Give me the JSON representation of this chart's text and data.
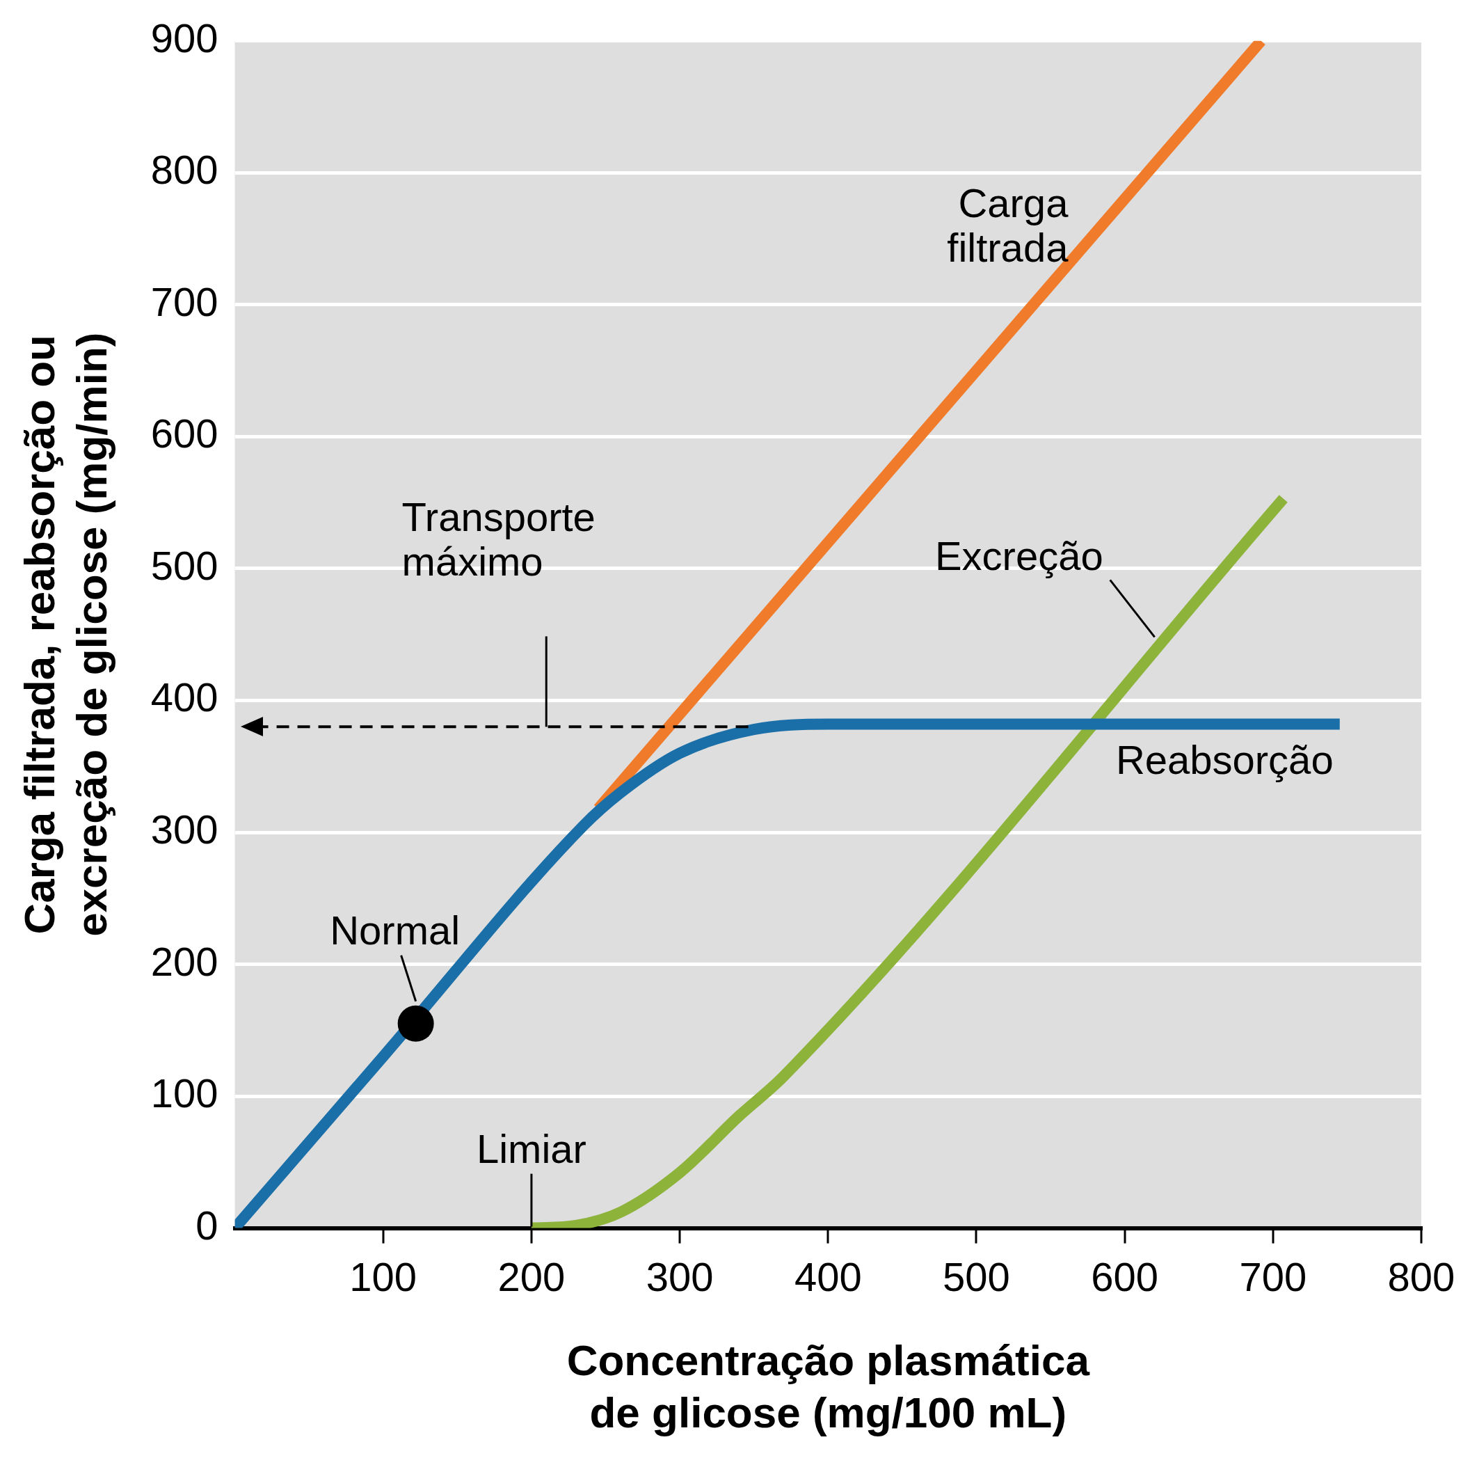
{
  "chart_data": {
    "type": "line",
    "xlabel": "Concentração plasmática\nde glicose (mg/100 mL)",
    "ylabel": "Carga filtrada, reabsorção ou\nexcreção de glicose (mg/min)",
    "xlim": [
      0,
      800
    ],
    "xticks": [
      100,
      200,
      300,
      400,
      500,
      600,
      700,
      800
    ],
    "ylim": [
      0,
      900
    ],
    "yticks": [
      0,
      100,
      200,
      300,
      400,
      500,
      600,
      700,
      800,
      900
    ],
    "grid": "y",
    "legend": false,
    "marker": "none",
    "series": [
      {
        "name": "Carga\nfiltrada",
        "color": "#f07b2a",
        "x": [
          245,
          692
        ],
        "values": [
          318,
          900
        ]
      },
      {
        "name": "Excreção",
        "color": "#8db33a",
        "x": [
          200,
          230,
          260,
          300,
          340,
          370,
          707
        ],
        "values": [
          0,
          2,
          12,
          42,
          85,
          115,
          553
        ]
      },
      {
        "name": "Reabsorção",
        "color": "#1a6fa8",
        "x": [
          0,
          100,
          235,
          260,
          300,
          350,
          400,
          745
        ],
        "values": [
          0,
          130,
          305,
          330,
          360,
          378,
          382,
          382
        ]
      },
      {
        "type": "scatter",
        "color": "#000000",
        "marker": "circle",
        "x": [
          122
        ],
        "values": [
          155
        ]
      }
    ],
    "ref_lines": [
      {
        "axis": "y",
        "value": 380,
        "label": "Transporte\nmáximo",
        "line_style": "dashed",
        "color": "#000000"
      }
    ],
    "annotations": [
      {
        "text": "Normal",
        "x": 122,
        "y": 155
      },
      {
        "text": "Limiar",
        "x": 200,
        "y": 0
      }
    ]
  }
}
